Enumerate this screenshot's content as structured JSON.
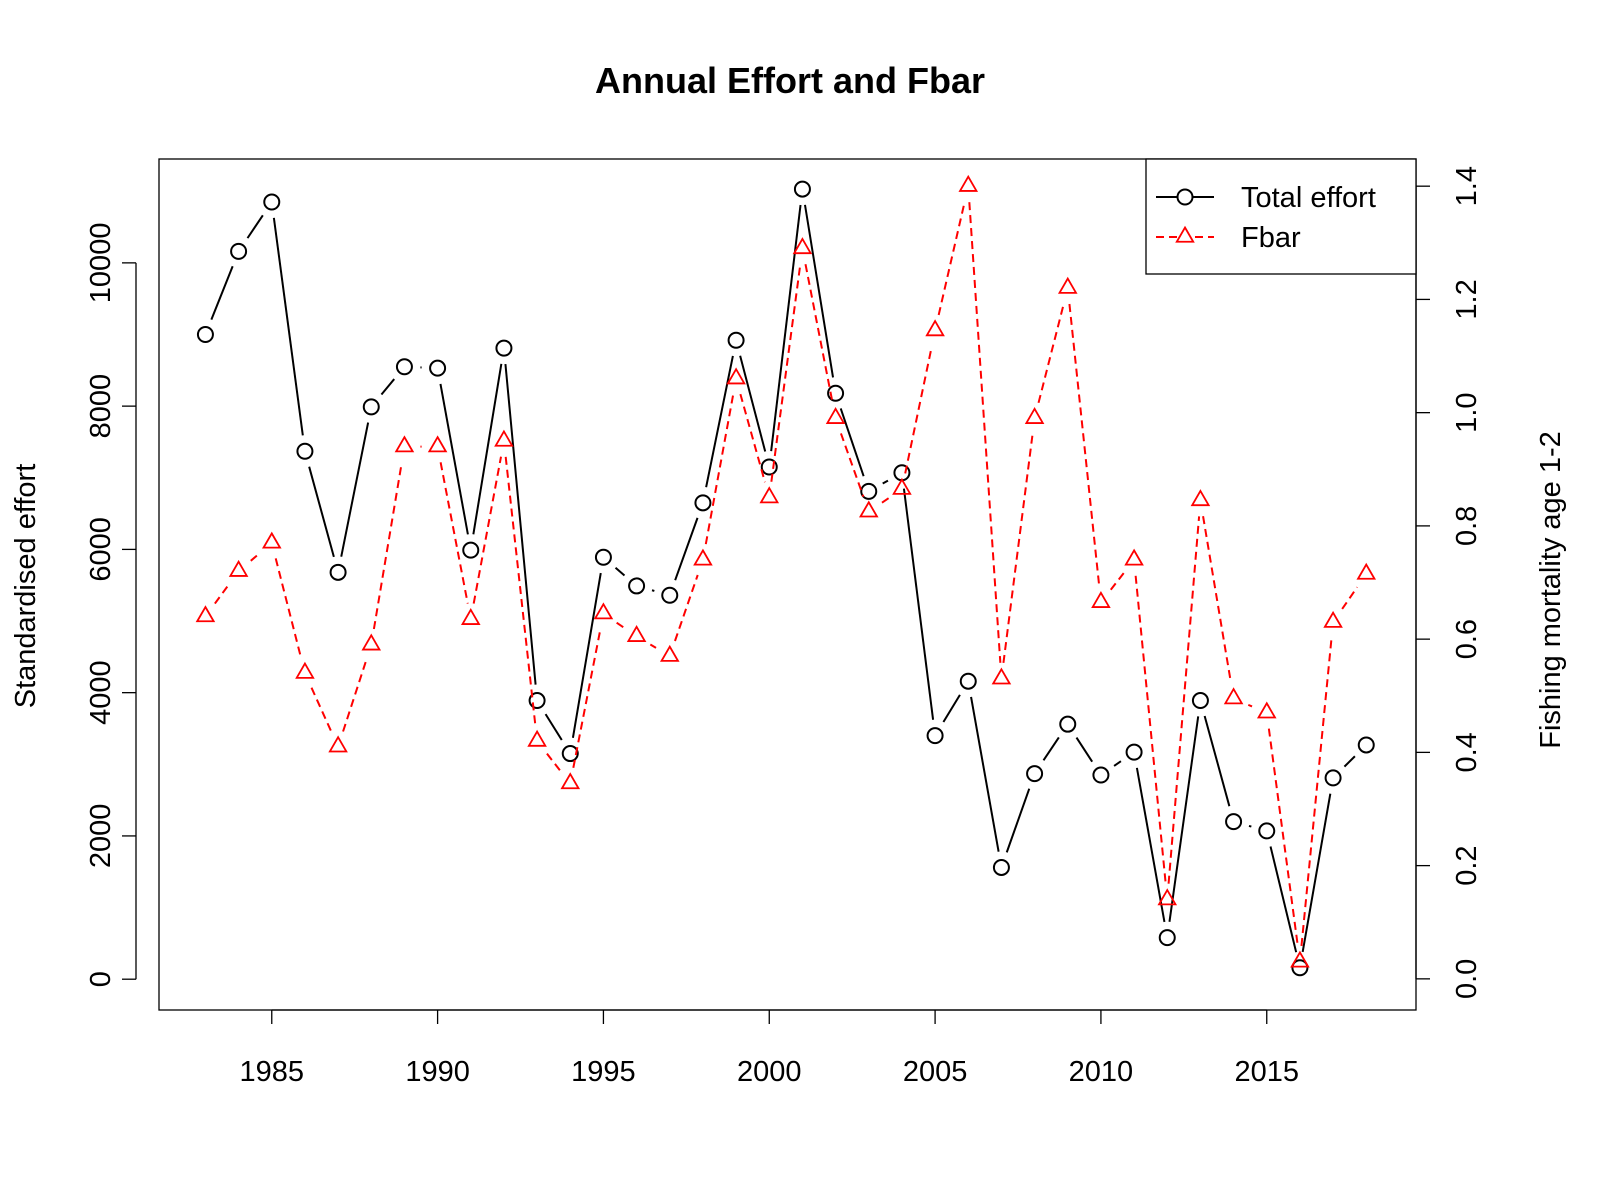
{
  "chart_data": {
    "type": "line",
    "title": "Annual Effort and Fbar",
    "xlabel": "",
    "ylabel": "Standardised effort",
    "ylabel_right": "Fishing mortality age 1-2",
    "x": [
      1983,
      1984,
      1985,
      1986,
      1987,
      1988,
      1989,
      1990,
      1991,
      1992,
      1993,
      1994,
      1995,
      1996,
      1997,
      1998,
      1999,
      2000,
      2001,
      2002,
      2003,
      2004,
      2005,
      2006,
      2007,
      2008,
      2009,
      2010,
      2011,
      2012,
      2013,
      2014,
      2015,
      2016,
      2017,
      2018
    ],
    "xlim": [
      1981.6,
      2019.5
    ],
    "x_ticks": [
      1985,
      1990,
      1995,
      2000,
      2005,
      2010,
      2015
    ],
    "ylim": [
      -430,
      11450
    ],
    "y_ticks": [
      0,
      2000,
      4000,
      6000,
      8000,
      10000
    ],
    "y2lim": [
      -0.055,
      1.448
    ],
    "y2_ticks": [
      0.0,
      0.2,
      0.4,
      0.6,
      0.8,
      1.0,
      1.2,
      1.4
    ],
    "series": [
      {
        "name": "Total effort",
        "axis": "left",
        "color": "#000000",
        "line_style": "solid",
        "marker": "circle",
        "values": [
          9000,
          10160,
          10850,
          7370,
          5680,
          7990,
          8550,
          8530,
          5990,
          8810,
          3890,
          3150,
          5890,
          5490,
          5360,
          6650,
          8920,
          7150,
          11030,
          8180,
          6810,
          7070,
          3400,
          4160,
          1560,
          2870,
          3560,
          2850,
          3170,
          580,
          3890,
          2200,
          2070,
          160,
          2810,
          3270
        ]
      },
      {
        "name": "Fbar",
        "axis": "right",
        "color": "#ff0000",
        "line_style": "dashed",
        "marker": "triangle",
        "values": [
          0.64,
          0.72,
          0.77,
          0.54,
          0.41,
          0.59,
          0.94,
          0.94,
          0.635,
          0.95,
          0.42,
          0.345,
          0.645,
          0.605,
          0.57,
          0.74,
          1.06,
          0.85,
          1.29,
          0.99,
          0.825,
          0.865,
          1.145,
          1.4,
          0.53,
          0.99,
          1.22,
          0.665,
          0.74,
          0.14,
          0.845,
          0.495,
          0.47,
          0.03,
          0.63,
          0.715
        ]
      }
    ],
    "legend_position": "top-right",
    "grid": false
  }
}
